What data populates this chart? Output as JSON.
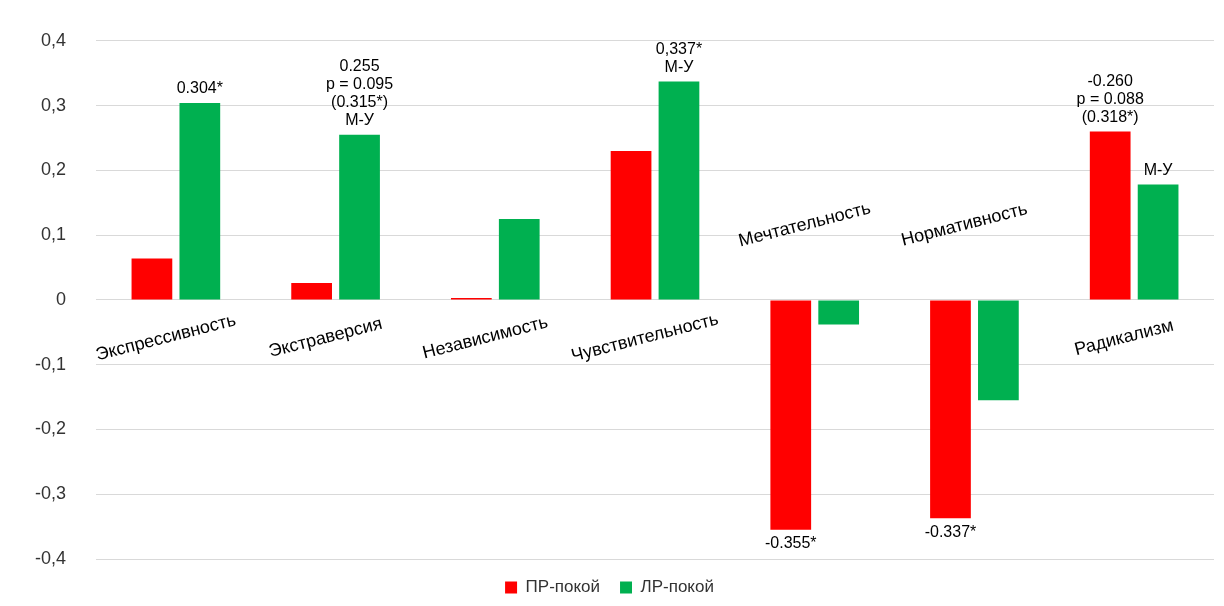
{
  "chart_data": {
    "type": "bar",
    "categories": [
      "Экспрессивность",
      "Экстраверсия",
      "Независимость",
      "Чувствительность",
      "Мечтательность",
      "Нормативность",
      "Радикализм"
    ],
    "series": [
      {
        "name": "ПР-покой",
        "color": "#ff0000",
        "values": [
          0.064,
          0.026,
          0.003,
          0.23,
          -0.355,
          -0.337,
          0.26
        ]
      },
      {
        "name": "ЛР-покой",
        "color": "#00b050",
        "values": [
          0.304,
          0.255,
          0.125,
          0.337,
          -0.038,
          -0.155,
          0.178
        ]
      }
    ],
    "ylim": [
      -0.4,
      0.4
    ],
    "yticks": [
      {
        "value": -0.4,
        "label": "-0,4"
      },
      {
        "value": -0.3,
        "label": "-0,3"
      },
      {
        "value": -0.2,
        "label": "-0,2"
      },
      {
        "value": -0.1,
        "label": "-0,1"
      },
      0,
      {
        "value": 0.1,
        "label": "0,1"
      },
      {
        "value": 0.2,
        "label": "0,2"
      },
      {
        "value": 0.3,
        "label": "0,3"
      },
      {
        "value": 0.4,
        "label": "0,4"
      }
    ],
    "grid": "y",
    "legend": "bottom",
    "annotations": [
      "0.304*",
      "0.255\np = 0.095\n(0.315*)\nМ-У",
      "0,337*\nМ-У",
      {
        "text": "-0.355*",
        "x": "Мечтательность",
        "y": -0.355
      },
      {
        "text": "-0.337*",
        "x": "Нормативность",
        "y": -0.337
      },
      {
        "text": "-0.260\np = 0.088\n(0.318*)",
        "x": "Радикализм",
        "y": 0.26
      },
      "М-У"
    ]
  }
}
